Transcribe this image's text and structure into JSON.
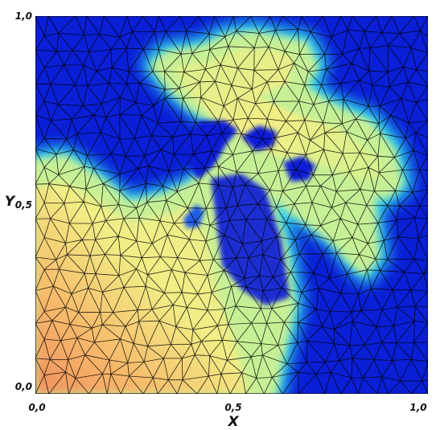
{
  "figure": {
    "x_axis_label": "X",
    "y_axis_label": "Y",
    "x_ticks": [
      "0,0",
      "0,5",
      "1,0"
    ],
    "y_ticks": [
      "0,0",
      "0,5",
      "1,0"
    ],
    "colormap": [
      "#0a1fd6",
      "#1d6cf0",
      "#2fd2ee",
      "#bff09a",
      "#f2ee86",
      "#f7b86a",
      "#ef8f5e"
    ],
    "background_color": "#0a1fd6"
  }
}
